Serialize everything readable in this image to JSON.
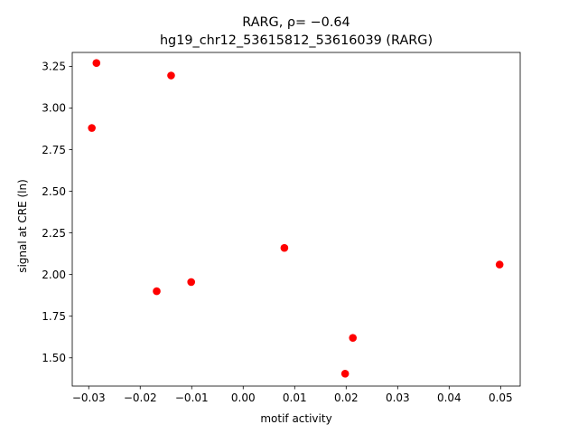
{
  "chart_data": {
    "type": "scatter",
    "title_line1": "RARG, ρ= −0.64",
    "title_line2": "hg19_chr12_53615812_53616039 (RARG)",
    "xlabel": "motif activity",
    "ylabel": "signal at CRE (ln)",
    "xlim": [
      -0.0332,
      0.0538
    ],
    "ylim": [
      1.3305,
      3.3335
    ],
    "grid": false,
    "marker_color": "#ff0000",
    "x_ticks": [
      -0.03,
      -0.02,
      -0.01,
      0.0,
      0.01,
      0.02,
      0.03,
      0.04,
      0.05
    ],
    "x_tick_labels": [
      "−0.03",
      "−0.02",
      "−0.01",
      "0.00",
      "0.01",
      "0.02",
      "0.03",
      "0.04",
      "0.05"
    ],
    "y_ticks": [
      1.5,
      1.75,
      2.0,
      2.25,
      2.5,
      2.75,
      3.0,
      3.25
    ],
    "y_tick_labels": [
      "1.50",
      "1.75",
      "2.00",
      "2.25",
      "2.50",
      "2.75",
      "3.00",
      "3.25"
    ],
    "points": [
      {
        "x": -0.0285,
        "y": 3.27
      },
      {
        "x": -0.014,
        "y": 3.195
      },
      {
        "x": -0.0294,
        "y": 2.88
      },
      {
        "x": 0.008,
        "y": 2.16
      },
      {
        "x": 0.0498,
        "y": 2.06
      },
      {
        "x": -0.0101,
        "y": 1.955
      },
      {
        "x": -0.0168,
        "y": 1.9
      },
      {
        "x": 0.0213,
        "y": 1.62
      },
      {
        "x": 0.0198,
        "y": 1.405
      }
    ]
  }
}
